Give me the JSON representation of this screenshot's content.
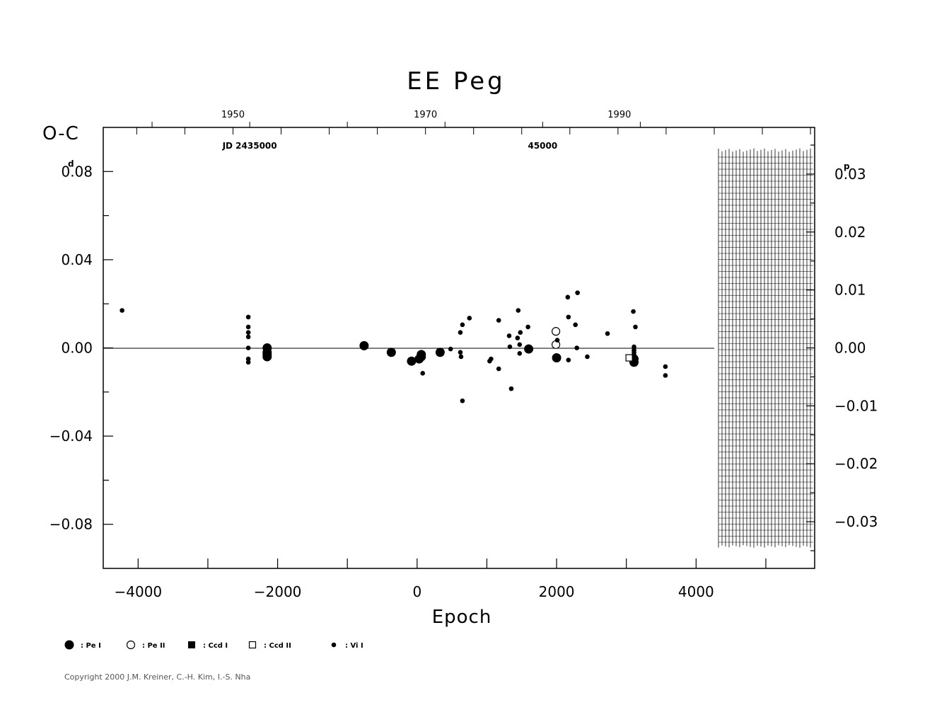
{
  "chart_data": {
    "type": "scatter",
    "title": "EE Peg",
    "xlabel": "Epoch",
    "ylabel": "O-C",
    "y_unit_symbol": "d",
    "right_unit_symbol": "p",
    "xlim": [
      -4500,
      5700
    ],
    "ylim": [
      -0.1,
      0.1
    ],
    "x_ticks": [
      -4000,
      -2000,
      0,
      2000,
      4000
    ],
    "x_tick_labels": [
      "−4000",
      "−2000",
      "0",
      "2000",
      "4000"
    ],
    "y_ticks": [
      0.08,
      0.04,
      0.0,
      -0.04,
      -0.08
    ],
    "y_tick_labels": [
      "0.08",
      "0.04",
      "0.00",
      "−0.04",
      "−0.08"
    ],
    "y_first_label_int": "0",
    "y_first_label_frac": ".08",
    "right_ticks": [
      0.03,
      0.02,
      0.01,
      0.0,
      -0.01,
      -0.02,
      -0.03
    ],
    "right_tick_labels": [
      "0.03",
      "0.02",
      "0.01",
      "0.00",
      "−0.01",
      "−0.02",
      "−0.03"
    ],
    "right_first_label_int": "0",
    "right_first_label_frac": ".03",
    "period_days": 2.628,
    "top_year_labels": [
      {
        "epoch": -2640,
        "label": "1950"
      },
      {
        "epoch": 120,
        "label": "1970"
      },
      {
        "epoch": 2900,
        "label": "1990"
      }
    ],
    "jd_labels": [
      {
        "epoch": -2400,
        "label": "JD 2435000"
      },
      {
        "epoch": 1800,
        "label": "45000"
      }
    ],
    "series": [
      {
        "name": "Pe I",
        "marker": "filled-circle-large",
        "points": [
          [
            -2150,
            0.0
          ],
          [
            -2150,
            -0.002
          ],
          [
            -2150,
            -0.003
          ],
          [
            -2150,
            -0.004
          ],
          [
            -760,
            0.001
          ],
          [
            -370,
            -0.002
          ],
          [
            -80,
            -0.006
          ],
          [
            30,
            -0.005
          ],
          [
            60,
            -0.003
          ],
          [
            60,
            -0.004
          ],
          [
            330,
            -0.002
          ],
          [
            1600,
            -0.0005
          ],
          [
            2000,
            -0.0045
          ],
          [
            3110,
            -0.005
          ],
          [
            3110,
            -0.0065
          ]
        ]
      },
      {
        "name": "Pe II",
        "marker": "open-circle",
        "points": [
          [
            1990,
            0.0075
          ],
          [
            1990,
            0.0015
          ]
        ]
      },
      {
        "name": "Ccd I",
        "marker": "filled-square",
        "points": []
      },
      {
        "name": "Ccd II",
        "marker": "open-square",
        "points": [
          [
            3040,
            -0.0045
          ]
        ]
      },
      {
        "name": "Vi I",
        "marker": "filled-circle-small",
        "points": [
          [
            -4230,
            0.017
          ],
          [
            -2420,
            0.014
          ],
          [
            -2420,
            0.0095
          ],
          [
            -2420,
            0.007
          ],
          [
            -2420,
            0.005
          ],
          [
            -2420,
            0.0
          ],
          [
            -2420,
            -0.005
          ],
          [
            -2420,
            -0.0065
          ],
          [
            80,
            -0.0115
          ],
          [
            480,
            -0.0005
          ],
          [
            620,
            0.007
          ],
          [
            620,
            -0.002
          ],
          [
            630,
            -0.004
          ],
          [
            650,
            0.0105
          ],
          [
            650,
            -0.024
          ],
          [
            750,
            0.0135
          ],
          [
            1040,
            -0.006
          ],
          [
            1060,
            -0.005
          ],
          [
            1170,
            0.0125
          ],
          [
            1170,
            -0.0095
          ],
          [
            1320,
            0.0055
          ],
          [
            1330,
            0.0005
          ],
          [
            1350,
            -0.0185
          ],
          [
            1440,
            0.0045
          ],
          [
            1450,
            0.017
          ],
          [
            1470,
            0.0015
          ],
          [
            1480,
            0.007
          ],
          [
            1470,
            -0.0025
          ],
          [
            1590,
            0.0095
          ],
          [
            2010,
            0.0035
          ],
          [
            2160,
            0.023
          ],
          [
            2170,
            0.014
          ],
          [
            2170,
            -0.0055
          ],
          [
            2270,
            0.0105
          ],
          [
            2300,
            0.025
          ],
          [
            2290,
            0.0
          ],
          [
            2440,
            -0.004
          ],
          [
            2730,
            0.0065
          ],
          [
            3100,
            0.0165
          ],
          [
            3130,
            0.0095
          ],
          [
            3110,
            0.0005
          ],
          [
            3110,
            -0.001
          ],
          [
            3110,
            -0.002
          ],
          [
            3110,
            -0.003
          ],
          [
            3560,
            -0.0085
          ],
          [
            3560,
            -0.0125
          ]
        ]
      }
    ],
    "grid": false,
    "legend_position": "bottom-left"
  },
  "legend": {
    "items": [
      {
        "marker": "filled-circle-large",
        "label": ": Pe I"
      },
      {
        "marker": "open-circle",
        "label": ": Pe II"
      },
      {
        "marker": "filled-square",
        "label": ": Ccd I"
      },
      {
        "marker": "open-square",
        "label": ": Ccd II"
      },
      {
        "marker": "filled-circle-small",
        "label": ": Vi I"
      }
    ]
  },
  "footer": {
    "copyright": "Copyright 2000 J.M. Kreiner, C.-H. Kim, I.-S. Nha"
  }
}
